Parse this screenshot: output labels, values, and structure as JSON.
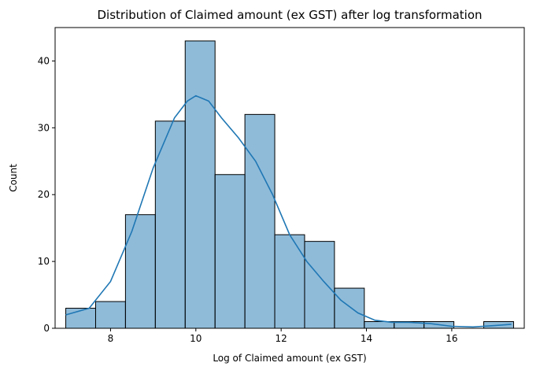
{
  "chart_data": {
    "type": "bar",
    "title": "Distribution of Claimed amount (ex GST) after log transformation",
    "xlabel": "Log of Claimed amount (ex GST)",
    "ylabel": "Count",
    "xlim": [
      6.7,
      17.7
    ],
    "ylim": [
      0,
      45
    ],
    "xticks": [
      8,
      10,
      12,
      14,
      16
    ],
    "yticks": [
      0,
      10,
      20,
      30,
      40
    ],
    "grid": false,
    "bins": [
      {
        "x0": 6.95,
        "x1": 7.65,
        "count": 3
      },
      {
        "x0": 7.65,
        "x1": 8.35,
        "count": 4
      },
      {
        "x0": 8.35,
        "x1": 9.05,
        "count": 17
      },
      {
        "x0": 9.05,
        "x1": 9.75,
        "count": 31
      },
      {
        "x0": 9.75,
        "x1": 10.45,
        "count": 43
      },
      {
        "x0": 10.45,
        "x1": 11.15,
        "count": 23
      },
      {
        "x0": 11.15,
        "x1": 11.85,
        "count": 32
      },
      {
        "x0": 11.85,
        "x1": 12.55,
        "count": 14
      },
      {
        "x0": 12.55,
        "x1": 13.25,
        "count": 13
      },
      {
        "x0": 13.25,
        "x1": 13.95,
        "count": 6
      },
      {
        "x0": 13.95,
        "x1": 14.65,
        "count": 1
      },
      {
        "x0": 14.65,
        "x1": 15.35,
        "count": 1
      },
      {
        "x0": 15.35,
        "x1": 16.05,
        "count": 1
      },
      {
        "x0": 16.05,
        "x1": 16.75,
        "count": 0
      },
      {
        "x0": 16.75,
        "x1": 17.45,
        "count": 1
      }
    ],
    "kde": {
      "x": [
        6.95,
        7.5,
        8.0,
        8.5,
        9.0,
        9.5,
        9.8,
        10.0,
        10.3,
        10.6,
        11.0,
        11.4,
        11.8,
        12.2,
        12.6,
        13.0,
        13.4,
        13.8,
        14.2,
        14.6,
        15.0,
        15.5,
        16.0,
        16.5,
        17.0,
        17.4
      ],
      "y": [
        2,
        3,
        7,
        14.5,
        24,
        31.5,
        34,
        34.8,
        34,
        31.5,
        28.5,
        25,
        20,
        14,
        10,
        7,
        4.2,
        2.3,
        1.2,
        0.9,
        0.9,
        0.7,
        0.3,
        0.2,
        0.4,
        0.6
      ]
    },
    "colors": {
      "bar": "#1f77b4",
      "kde": "#1f77b4"
    }
  }
}
